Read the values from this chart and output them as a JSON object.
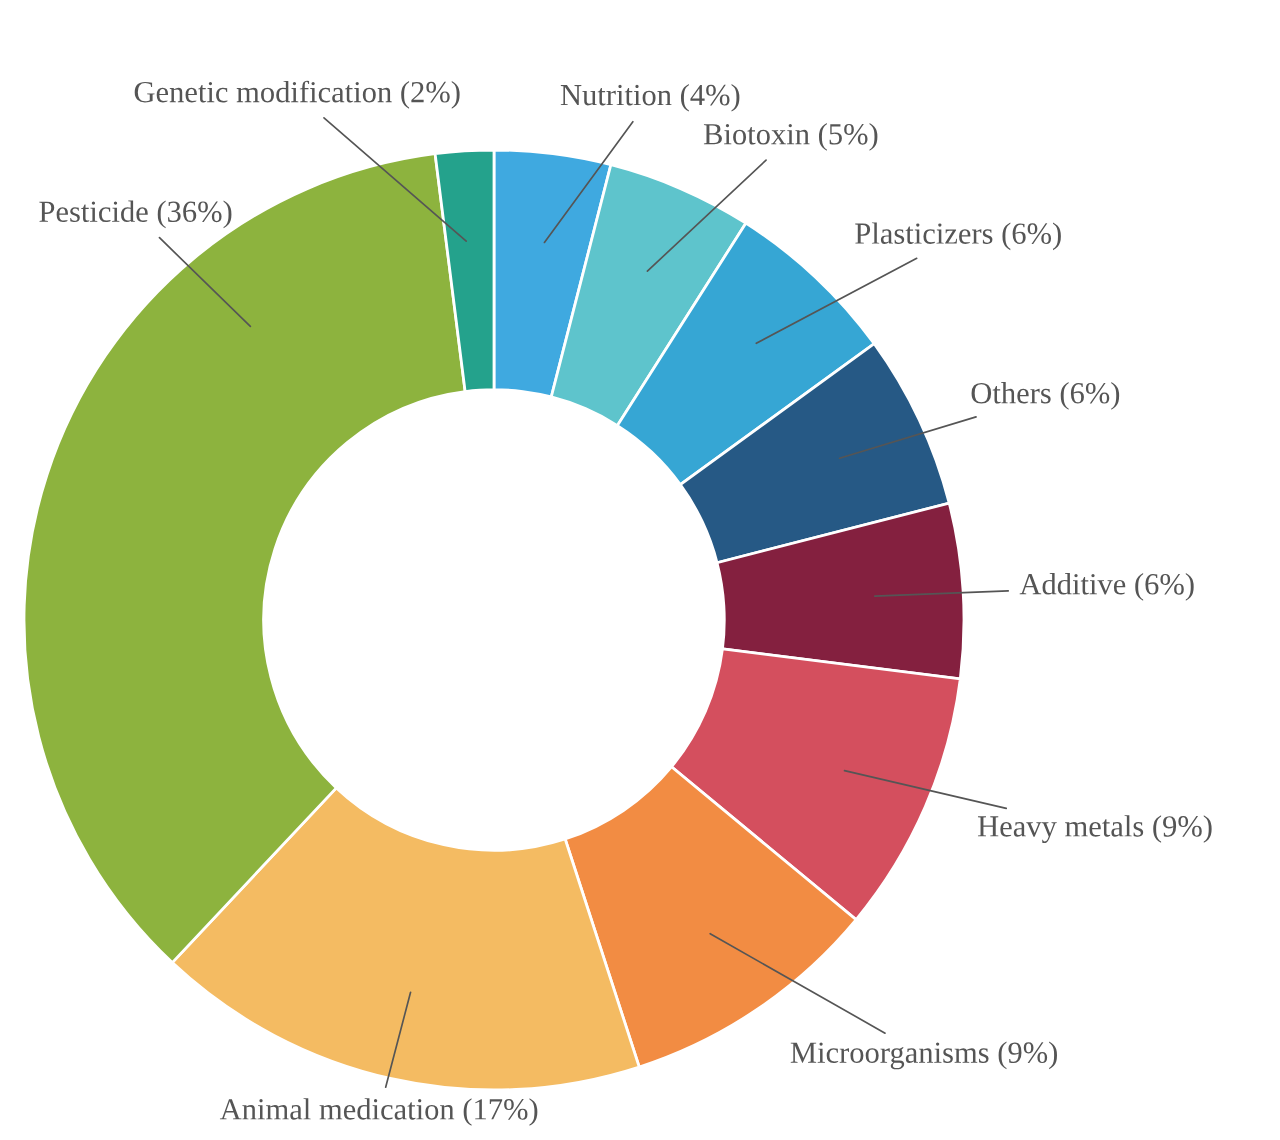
{
  "chart_data": {
    "type": "donut",
    "categories": [
      "Nutrition",
      "Biotoxin",
      "Plasticizers",
      "Others",
      "Additive",
      "Heavy metals",
      "Microorganisms",
      "Animal medication",
      "Pesticide",
      "Genetic modification"
    ],
    "values": [
      4,
      5,
      6,
      6,
      6,
      9,
      9,
      17,
      36,
      2
    ],
    "value_labels": [
      "(4%)",
      "(5%)",
      "(6%)",
      "(6%)",
      "(6%)",
      "(9%)",
      "(9%)",
      "(17%)",
      "(36%)",
      "(2%)"
    ],
    "colors": [
      "#3fa9e0",
      "#5ec4cc",
      "#36a6d4",
      "#265985",
      "#84203f",
      "#d44f5e",
      "#f28c43",
      "#f4bb62",
      "#8db33e",
      "#24a28c"
    ],
    "legend": false
  }
}
